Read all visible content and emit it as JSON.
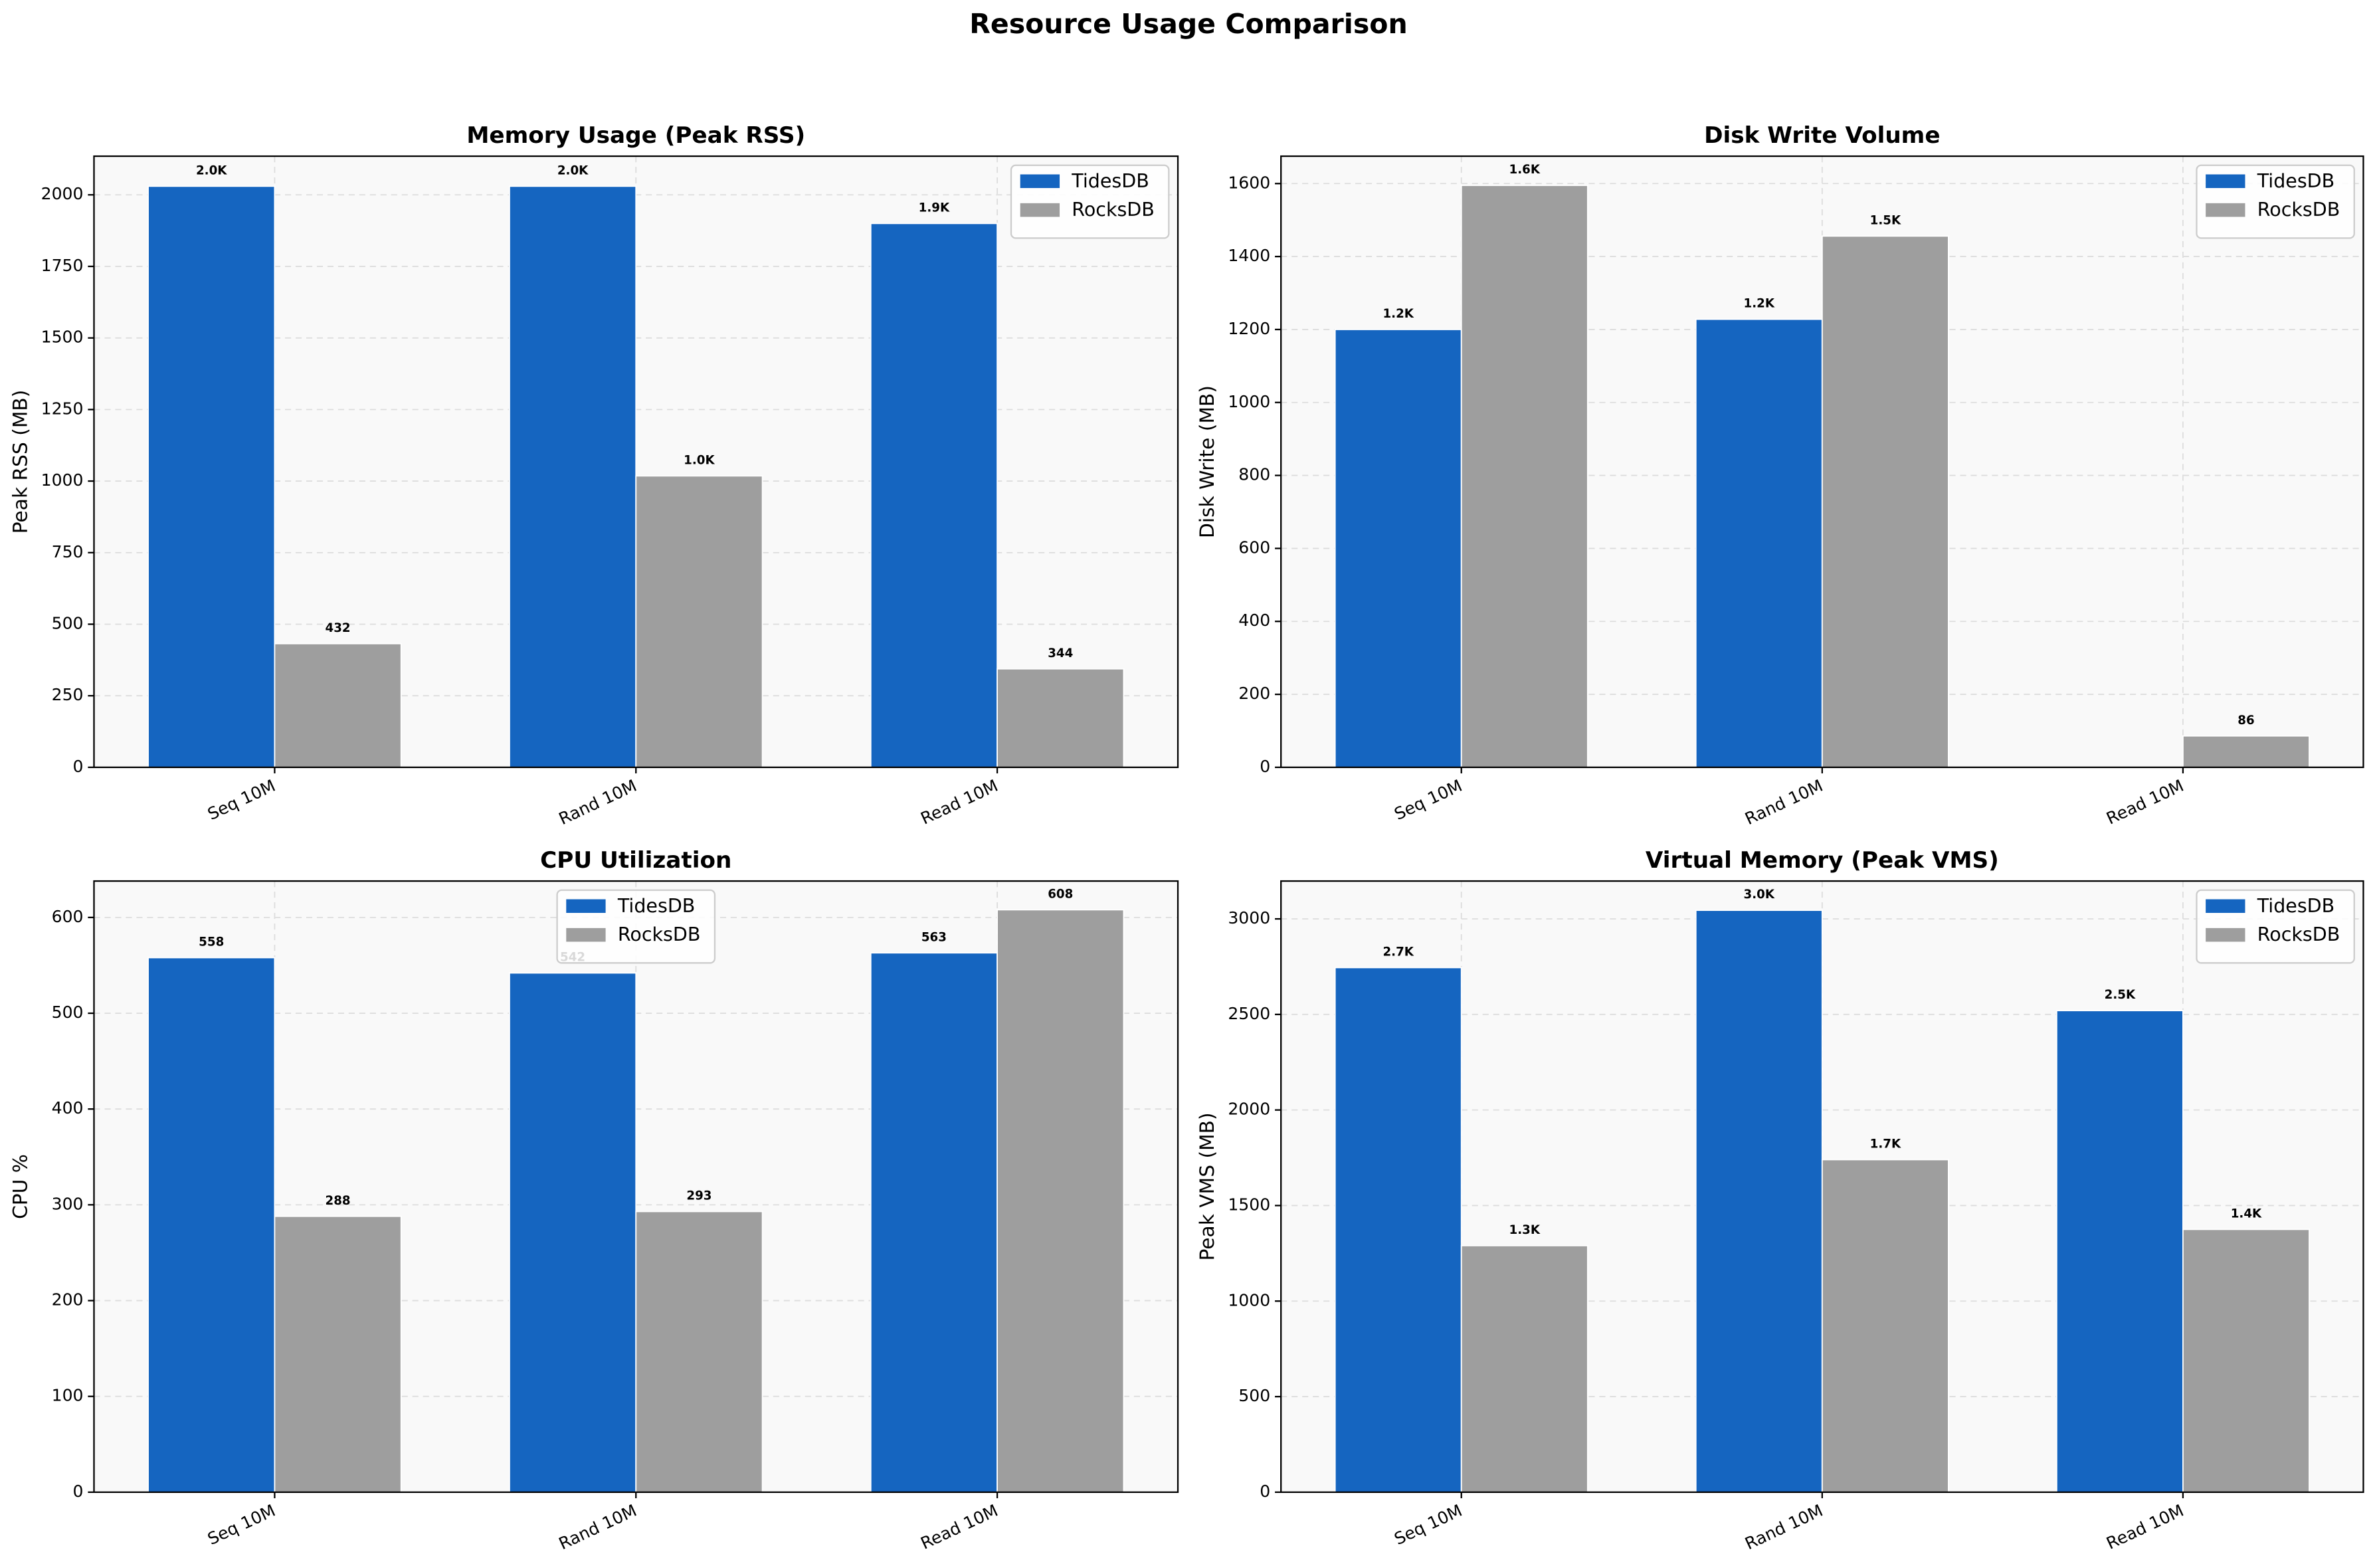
{
  "title": "Resource Usage Comparison",
  "chart_data": [
    {
      "type": "bar",
      "title": "Memory Usage (Peak RSS)",
      "y_label": "Peak RSS (MB)",
      "categories": [
        "Seq 10M",
        "Rand 10M",
        "Read 10M"
      ],
      "series": [
        {
          "name": "TidesDB",
          "color": "#1565c0",
          "label_color": "#1565c0",
          "values": [
            2030,
            2030,
            1900
          ],
          "value_labels": [
            "2.0K",
            "2.0K",
            "1.9K"
          ]
        },
        {
          "name": "RocksDB",
          "color": "#9e9e9e",
          "label_color": "#555555",
          "values": [
            432,
            1018,
            344
          ],
          "value_labels": [
            "432",
            "1.0K",
            "344"
          ]
        }
      ],
      "ylim": [
        0,
        2135
      ],
      "yticks": [
        0,
        250,
        500,
        750,
        1000,
        1250,
        1500,
        1750,
        2000
      ],
      "grid": true,
      "legend": "upper-right"
    },
    {
      "type": "bar",
      "title": "Disk Write Volume",
      "y_label": "Disk Write (MB)",
      "categories": [
        "Seq 10M",
        "Rand 10M",
        "Read 10M"
      ],
      "series": [
        {
          "name": "TidesDB",
          "color": "#1565c0",
          "label_color": "#1565c0",
          "values": [
            1200,
            1228,
            null
          ],
          "value_labels": [
            "1.2K",
            "1.2K",
            null
          ]
        },
        {
          "name": "RocksDB",
          "color": "#9e9e9e",
          "label_color": "#555555",
          "values": [
            1595,
            1456,
            86
          ],
          "value_labels": [
            "1.6K",
            "1.5K",
            "86"
          ]
        }
      ],
      "ylim": [
        0,
        1675
      ],
      "yticks": [
        0,
        200,
        400,
        600,
        800,
        1000,
        1200,
        1400,
        1600
      ],
      "grid": true,
      "legend": "upper-right"
    },
    {
      "type": "bar",
      "title": "CPU Utilization",
      "y_label": "CPU %",
      "categories": [
        "Seq 10M",
        "Rand 10M",
        "Read 10M"
      ],
      "series": [
        {
          "name": "TidesDB",
          "color": "#1565c0",
          "label_color": "#1565c0",
          "values": [
            558,
            542,
            563
          ]
        },
        {
          "name": "RocksDB",
          "color": "#9e9e9e",
          "label_color": "#555555",
          "values": [
            288,
            293,
            608
          ]
        }
      ],
      "ylim": [
        0,
        638
      ],
      "yticks": [
        0,
        100,
        200,
        300,
        400,
        500,
        600
      ],
      "grid": true,
      "legend": "upper-center"
    },
    {
      "type": "bar",
      "title": "Virtual Memory (Peak VMS)",
      "y_label": "Peak VMS (MB)",
      "categories": [
        "Seq 10M",
        "Rand 10M",
        "Read 10M"
      ],
      "series": [
        {
          "name": "TidesDB",
          "color": "#1565c0",
          "label_color": "#1565c0",
          "values": [
            2745,
            3045,
            2520
          ],
          "value_labels": [
            "2.7K",
            "3.0K",
            "2.5K"
          ]
        },
        {
          "name": "RocksDB",
          "color": "#9e9e9e",
          "label_color": "#555555",
          "values": [
            1290,
            1740,
            1375
          ],
          "value_labels": [
            "1.3K",
            "1.7K",
            "1.4K"
          ]
        }
      ],
      "ylim": [
        0,
        3198
      ],
      "yticks": [
        0,
        500,
        1000,
        1500,
        2000,
        2500,
        3000
      ],
      "grid": true,
      "legend": "upper-right"
    }
  ]
}
